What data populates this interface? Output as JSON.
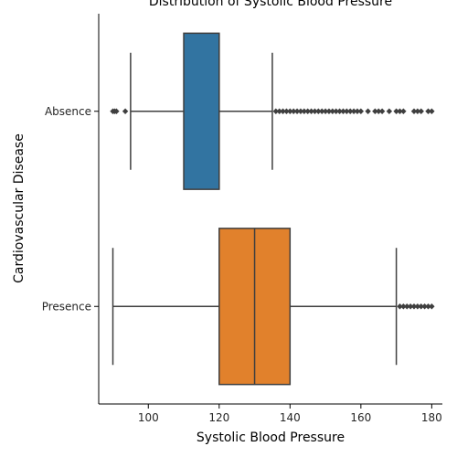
{
  "chart_data": {
    "type": "boxplot",
    "orientation": "horizontal",
    "title": "Distribution of Systolic Blood Pressure",
    "xlabel": "Systolic Blood Pressure",
    "ylabel": "Cardiovascular Disease",
    "xlim": [
      86,
      183
    ],
    "xticks": [
      100,
      120,
      140,
      160,
      180
    ],
    "grid": false,
    "categories": [
      "Absence",
      "Presence"
    ],
    "boxes": [
      {
        "category": "Absence",
        "color": "#3274a1",
        "whisker_low": 95,
        "q1": 110,
        "median": 120,
        "q3": 120,
        "whisker_high": 135,
        "outliers": [
          90,
          90.5,
          91,
          93.5,
          136,
          137,
          138,
          139,
          140,
          141,
          142,
          143,
          144,
          145,
          146,
          147,
          148,
          149,
          150,
          151,
          152,
          153,
          154,
          155,
          156,
          157,
          158,
          159,
          160,
          162,
          164,
          165,
          166,
          168,
          170,
          171,
          172,
          175,
          176,
          177,
          179,
          180
        ]
      },
      {
        "category": "Presence",
        "color": "#e1812c",
        "whisker_low": 90,
        "q1": 120,
        "median": 130,
        "q3": 140,
        "whisker_high": 170,
        "outliers": [
          171,
          172,
          173,
          174,
          175,
          176,
          177,
          178,
          179,
          180
        ]
      }
    ]
  }
}
